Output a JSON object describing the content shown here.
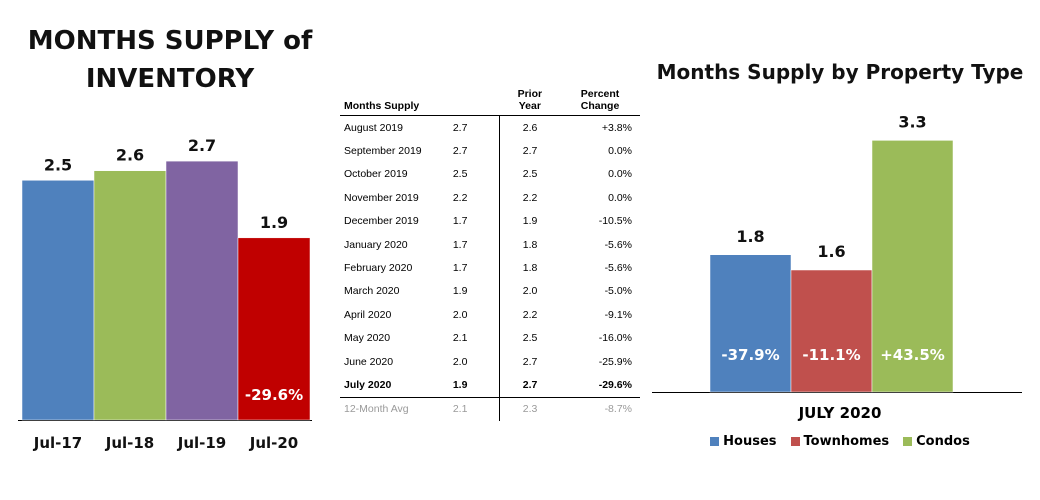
{
  "left": {
    "title_line1": "MONTHS SUPPLY of",
    "title_line2": "INVENTORY"
  },
  "table": {
    "headers": {
      "label": "Months Supply",
      "value": "",
      "prior": "Prior Year",
      "prior_line1": "Prior",
      "prior_line2": "Year",
      "pct_line1": "Percent",
      "pct_line2": "Change"
    },
    "rows": [
      {
        "label": "August 2019",
        "value": "2.7",
        "prior": "2.6",
        "pct": "+3.8%"
      },
      {
        "label": "September 2019",
        "value": "2.7",
        "prior": "2.7",
        "pct": "0.0%"
      },
      {
        "label": "October 2019",
        "value": "2.5",
        "prior": "2.5",
        "pct": "0.0%"
      },
      {
        "label": "November 2019",
        "value": "2.2",
        "prior": "2.2",
        "pct": "0.0%"
      },
      {
        "label": "December 2019",
        "value": "1.7",
        "prior": "1.9",
        "pct": "-10.5%"
      },
      {
        "label": "January 2020",
        "value": "1.7",
        "prior": "1.8",
        "pct": "-5.6%"
      },
      {
        "label": "February 2020",
        "value": "1.7",
        "prior": "1.8",
        "pct": "-5.6%"
      },
      {
        "label": "March 2020",
        "value": "1.9",
        "prior": "2.0",
        "pct": "-5.0%"
      },
      {
        "label": "April 2020",
        "value": "2.0",
        "prior": "2.2",
        "pct": "-9.1%"
      },
      {
        "label": "May 2020",
        "value": "2.1",
        "prior": "2.5",
        "pct": "-16.0%"
      },
      {
        "label": "June 2020",
        "value": "2.0",
        "prior": "2.7",
        "pct": "-25.9%"
      },
      {
        "label": "July 2020",
        "value": "1.9",
        "prior": "2.7",
        "pct": "-29.6%"
      },
      {
        "label": "12-Month Avg",
        "value": "2.1",
        "prior": "2.3",
        "pct": "-8.7%"
      }
    ]
  },
  "right": {
    "title": "Months Supply by Property Type",
    "xlabel": "JULY 2020",
    "legend": [
      "Houses",
      "Townhomes",
      "Condos"
    ]
  },
  "chart_data": [
    {
      "type": "bar",
      "title": "MONTHS SUPPLY of INVENTORY",
      "categories": [
        "Jul-17",
        "Jul-18",
        "Jul-19",
        "Jul-20"
      ],
      "values": [
        2.5,
        2.6,
        2.7,
        1.9
      ],
      "value_labels": [
        "2.5",
        "2.6",
        "2.7",
        "1.9"
      ],
      "annotations": [
        "",
        "",
        "",
        "-29.6%"
      ],
      "colors": [
        "#4f81bd",
        "#9bbb59",
        "#8064a2",
        "#c00000"
      ],
      "ylim": [
        0,
        3.4
      ],
      "grid": false,
      "legend": "none"
    },
    {
      "type": "table",
      "columns": [
        "Months Supply",
        "",
        "Prior Year",
        "Percent Change"
      ]
    },
    {
      "type": "bar",
      "title": "Months Supply by Property Type",
      "xlabel": "JULY 2020",
      "categories": [
        "Houses",
        "Townhomes",
        "Condos"
      ],
      "values": [
        1.8,
        1.6,
        3.3
      ],
      "value_labels": [
        "1.8",
        "1.6",
        "3.3"
      ],
      "annotations": [
        "-37.9%",
        "-11.1%",
        "+43.5%"
      ],
      "colors": [
        "#4f81bd",
        "#c0504d",
        "#9bbb59"
      ],
      "ylim": [
        0,
        4.0
      ],
      "grid": false,
      "legend": "bottom"
    }
  ]
}
